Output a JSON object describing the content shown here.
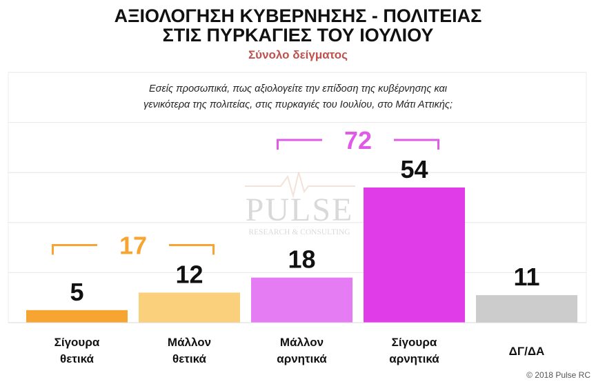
{
  "chart_data": {
    "type": "bar",
    "title_lines": [
      "ΑΞΙΟΛΟΓΗΣΗ ΚΥΒΕΡΝΗΣΗΣ - ΠΟΛΙΤΕΙΑΣ",
      "ΣΤΙΣ ΠΥΡΚΑΓΙΕΣ ΤΟΥ ΙΟΥΛΙΟΥ"
    ],
    "subtitle": "Σύνολο δείγματος",
    "question_lines": [
      "Εσείς προσωπικά, πως αξιολογείτε την επίδοση της κυβέρνησης και",
      "γενικότερα της πολιτείας, στις πυρκαγιές του Ιουλίου, στο Μάτι Αττικής;"
    ],
    "categories": [
      [
        "Σίγουρα",
        "θετικά"
      ],
      [
        "Μάλλον",
        "θετικά"
      ],
      [
        "Μάλλον",
        "αρνητικά"
      ],
      [
        "Σίγουρα",
        "αρνητικά"
      ],
      [
        "ΔΓ/ΔΑ"
      ]
    ],
    "values": [
      5,
      12,
      18,
      54,
      11
    ],
    "ylim": [
      0,
      100
    ],
    "grid": true,
    "bar_colors": [
      "#f6a432",
      "#fbd07c",
      "#e57cf3",
      "#e03de8",
      "#cccccc"
    ],
    "groups": [
      {
        "label": "17",
        "value": 17,
        "from": 0,
        "to": 1,
        "color": "#f6a432"
      },
      {
        "label": "72",
        "value": 72,
        "from": 2,
        "to": 3,
        "color": "#e05ae8"
      }
    ]
  },
  "watermark": {
    "brand": "PULSE",
    "tagline": "RESEARCH & CONSULTING"
  },
  "copyright": "© 2018 Pulse RC"
}
